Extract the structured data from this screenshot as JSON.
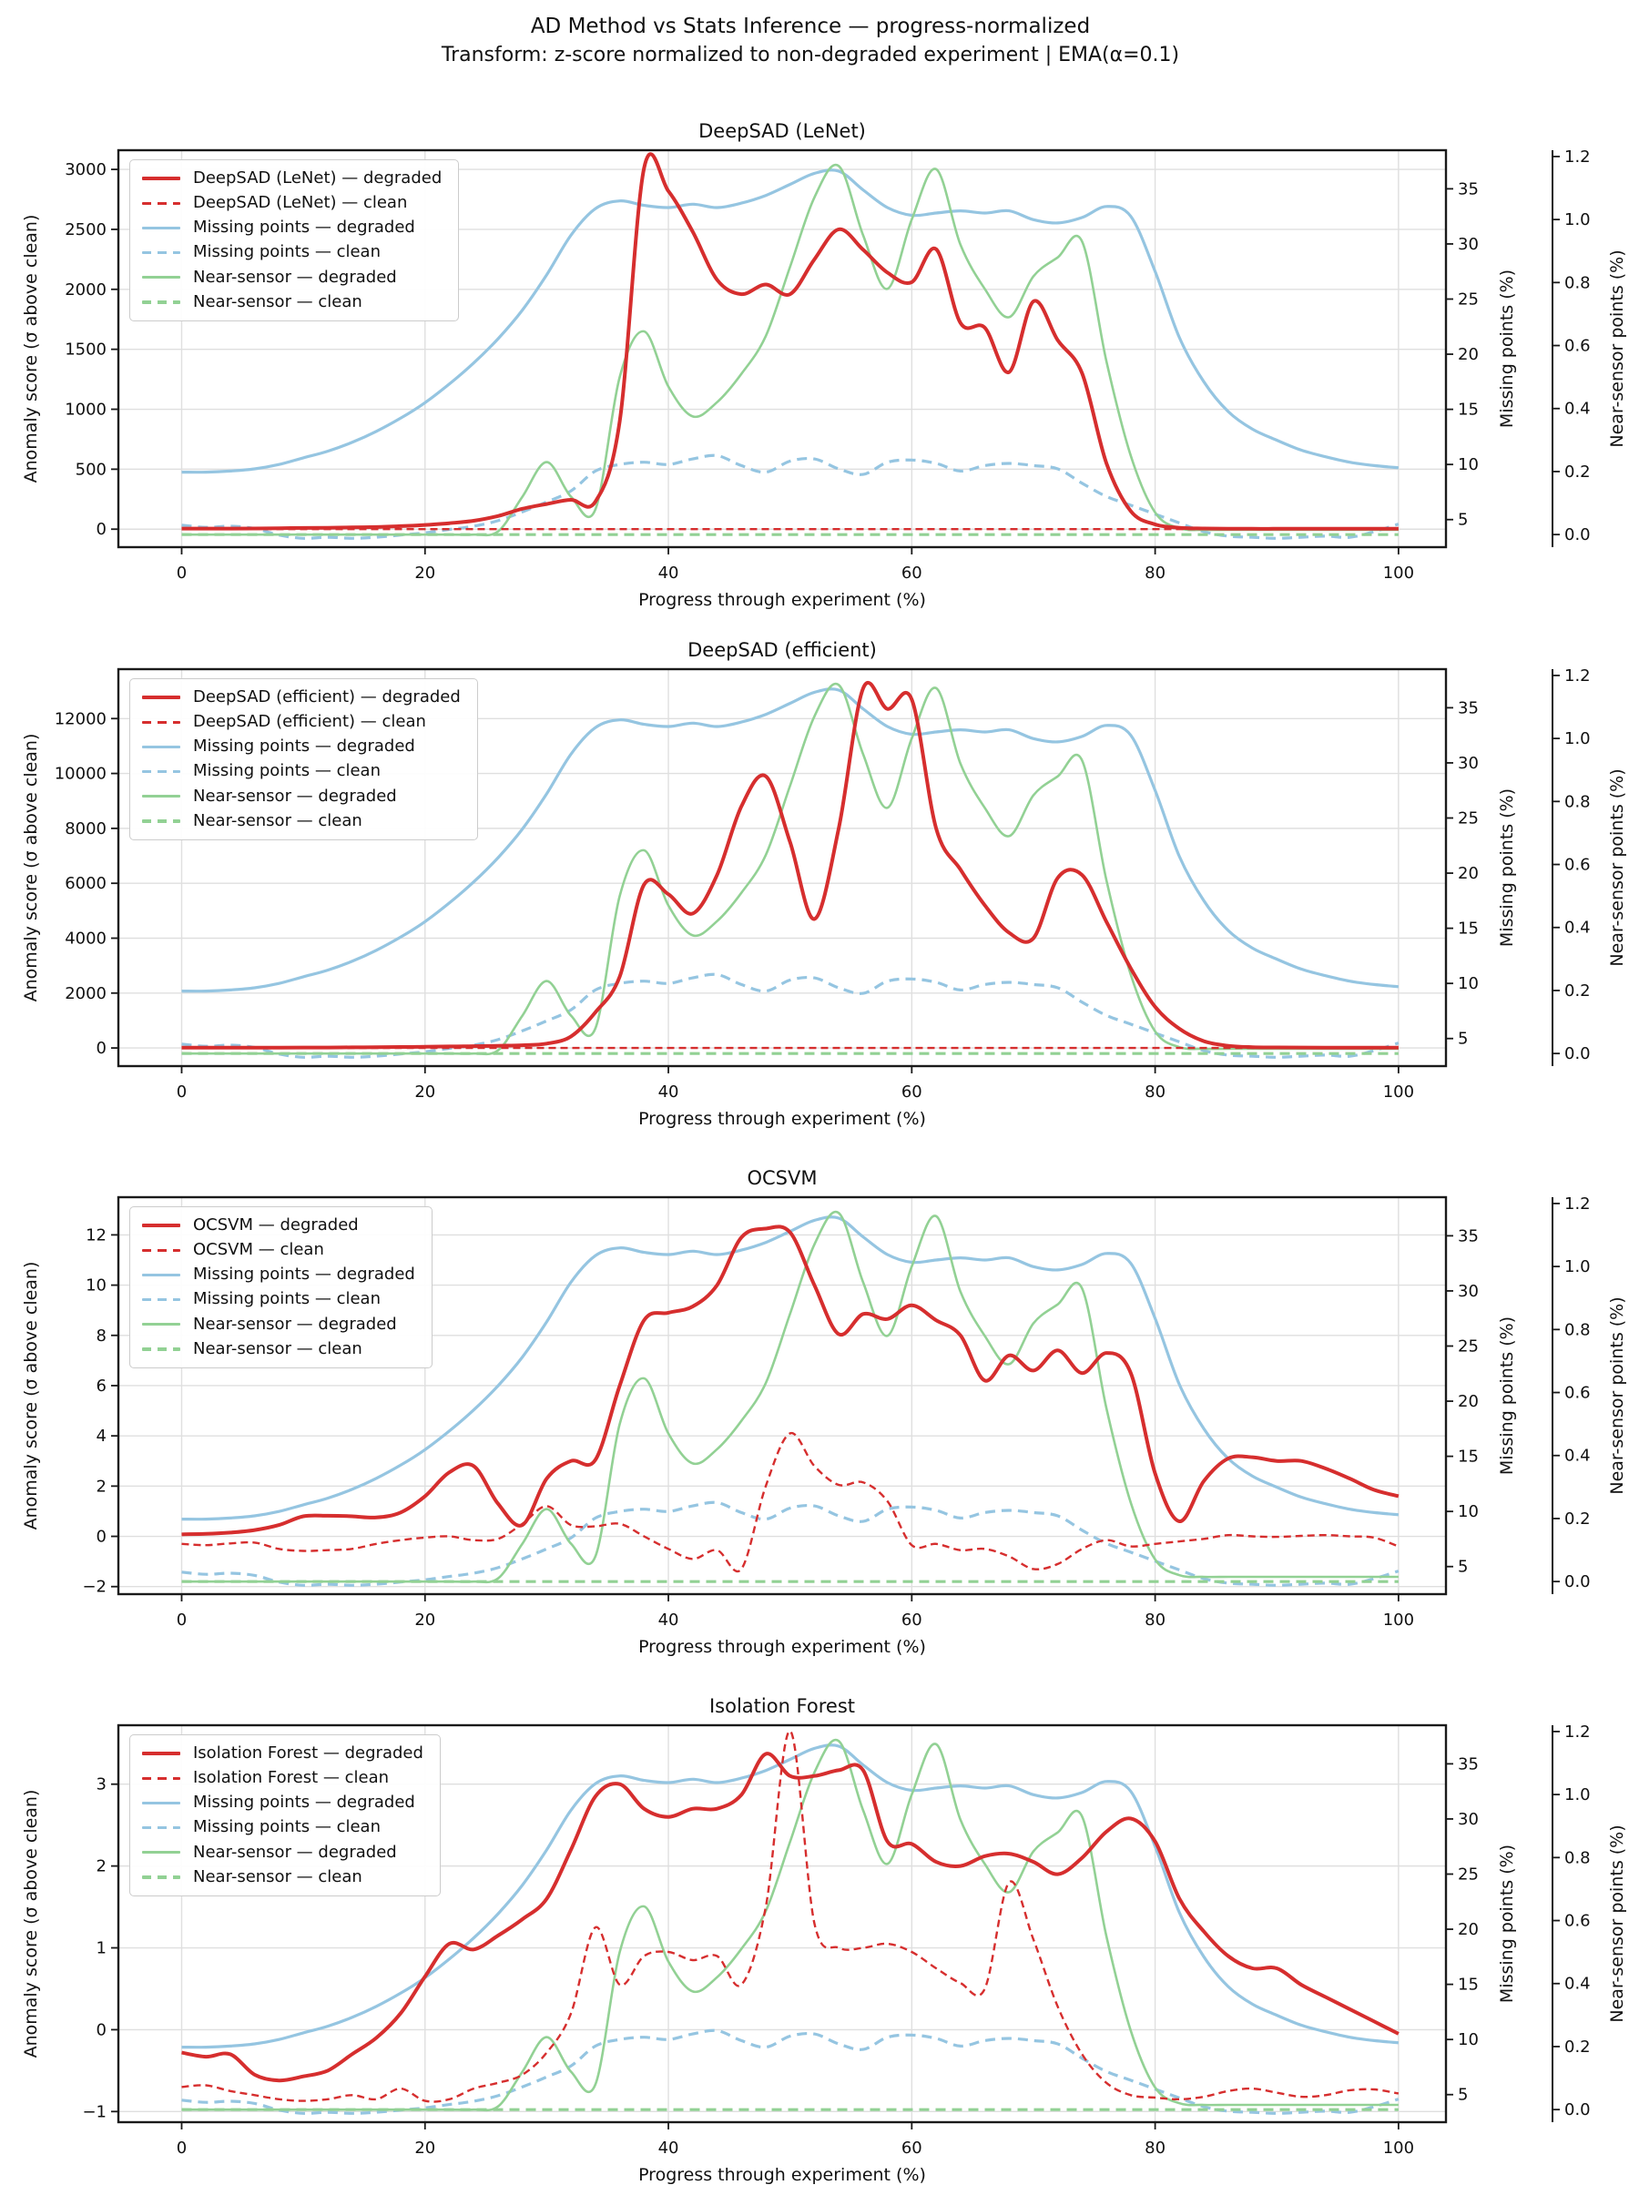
{
  "figure": {
    "suptitle": "AD Method vs Stats Inference — progress-normalized",
    "subtitle": "Transform: z-score normalized to non-degraded experiment | EMA(α=0.1)"
  },
  "colors": {
    "method": "#d62e2e",
    "missing": "#95c5e1",
    "near": "#92d194",
    "grid": "#dfdfdf",
    "spine": "#1a1a1a",
    "text": "#111111"
  },
  "chart_data": {
    "type": "line",
    "grid": true,
    "legend_position": "upper left",
    "x_axis": {
      "label": "Progress through experiment (%)",
      "ticks": [
        0,
        20,
        40,
        60,
        80,
        100
      ],
      "lim": [
        -5.2,
        103.9
      ]
    },
    "right_axis_missing": {
      "label": "Missing points (%)",
      "ticks": [
        5,
        10,
        15,
        20,
        25,
        30,
        35
      ],
      "lim": [
        2.5,
        38.5
      ]
    },
    "right_axis_near": {
      "label": "Near-sensor points (%)",
      "ticks": [
        0.0,
        0.2,
        0.4,
        0.6,
        0.8,
        1.0,
        1.2
      ],
      "lim": [
        -0.04,
        1.22
      ]
    },
    "x": [
      0,
      2,
      4,
      6,
      8,
      10,
      12,
      14,
      16,
      18,
      20,
      22,
      24,
      26,
      28,
      30,
      32,
      34,
      36,
      38,
      40,
      42,
      44,
      46,
      48,
      50,
      52,
      54,
      56,
      58,
      60,
      62,
      64,
      66,
      68,
      70,
      72,
      74,
      76,
      78,
      80,
      82,
      84,
      86,
      88,
      90,
      92,
      94,
      96,
      98,
      100
    ],
    "shared_series": {
      "missing_degraded": [
        9.3,
        9.3,
        9.4,
        9.6,
        10.0,
        10.6,
        11.2,
        12.0,
        13.0,
        14.2,
        15.6,
        17.3,
        19.2,
        21.4,
        24.0,
        27.2,
        30.8,
        33.2,
        33.9,
        33.5,
        33.3,
        33.6,
        33.3,
        33.7,
        34.4,
        35.4,
        36.4,
        36.6,
        34.9,
        33.3,
        32.6,
        32.8,
        33.0,
        32.8,
        33.0,
        32.2,
        31.9,
        32.4,
        33.4,
        32.5,
        27.5,
        21.5,
        17.5,
        14.8,
        13.2,
        12.2,
        11.3,
        10.7,
        10.2,
        9.9,
        9.7
      ],
      "missing_clean": [
        4.5,
        4.3,
        4.4,
        4.2,
        3.6,
        3.3,
        3.4,
        3.3,
        3.4,
        3.6,
        3.8,
        4.1,
        4.4,
        4.9,
        5.7,
        6.6,
        7.6,
        9.4,
        10.0,
        10.2,
        10.0,
        10.5,
        10.8,
        9.9,
        9.3,
        10.3,
        10.5,
        9.6,
        9.1,
        10.2,
        10.4,
        10.1,
        9.4,
        9.9,
        10.1,
        9.9,
        9.6,
        8.3,
        7.1,
        6.3,
        5.5,
        4.7,
        3.9,
        3.5,
        3.4,
        3.3,
        3.4,
        3.5,
        3.4,
        3.9,
        4.6
      ],
      "near_degraded": [
        0,
        0,
        0,
        0,
        0,
        0,
        0,
        0,
        0,
        0,
        0,
        0,
        0,
        0.01,
        0.12,
        0.23,
        0.12,
        0.08,
        0.5,
        0.645,
        0.47,
        0.375,
        0.42,
        0.51,
        0.63,
        0.85,
        1.07,
        1.17,
        0.95,
        0.78,
        1.0,
        1.16,
        0.92,
        0.78,
        0.69,
        0.82,
        0.88,
        0.93,
        0.55,
        0.25,
        0.07,
        0.02,
        0.015,
        0.015,
        0.015,
        0.015,
        0.015,
        0.015,
        0.015,
        0.015,
        0.015
      ],
      "near_clean": {
        "flat": 0.0
      }
    },
    "panels": [
      {
        "title": "DeepSAD (LeNet)",
        "left_axis": {
          "label": "Anomaly score (σ above clean)",
          "ticks": [
            0,
            500,
            1000,
            1500,
            2000,
            2500,
            3000
          ],
          "lim": [
            -150,
            3160
          ]
        },
        "series": {
          "method_degraded": [
            5,
            5,
            5,
            6,
            8,
            10,
            12,
            15,
            18,
            25,
            35,
            50,
            70,
            110,
            170,
            210,
            245,
            230,
            900,
            3010,
            2820,
            2480,
            2080,
            1960,
            2040,
            1960,
            2250,
            2500,
            2330,
            2140,
            2060,
            2335,
            1720,
            1680,
            1310,
            1900,
            1575,
            1300,
            550,
            150,
            40,
            12,
            6,
            4,
            3,
            3,
            3,
            3,
            3,
            3,
            3
          ],
          "method_clean": {
            "flat": 0.0
          }
        },
        "legend": [
          "DeepSAD (LeNet) — degraded",
          "DeepSAD (LeNet) — clean",
          "Missing points — degraded",
          "Missing points — clean",
          "Near-sensor — degraded",
          "Near-sensor — clean"
        ]
      },
      {
        "title": "DeepSAD (efficient)",
        "left_axis": {
          "label": "Anomaly score (σ above clean)",
          "ticks": [
            0,
            2000,
            4000,
            6000,
            8000,
            10000,
            12000
          ],
          "lim": [
            -660,
            13800
          ]
        },
        "series": {
          "method_degraded": [
            10,
            10,
            10,
            10,
            12,
            15,
            18,
            22,
            28,
            35,
            45,
            55,
            65,
            80,
            100,
            160,
            420,
            1300,
            2600,
            5950,
            5600,
            4900,
            6300,
            8800,
            9900,
            7500,
            4700,
            8000,
            13100,
            12350,
            12700,
            8000,
            6500,
            5200,
            4200,
            4000,
            6200,
            6300,
            4600,
            2900,
            1500,
            700,
            250,
            80,
            30,
            20,
            15,
            12,
            10,
            10,
            10
          ],
          "method_clean": {
            "flat": 0.0
          }
        },
        "legend": [
          "DeepSAD (efficient) — degraded",
          "DeepSAD (efficient) — clean",
          "Missing points — degraded",
          "Missing points — clean",
          "Near-sensor — degraded",
          "Near-sensor — clean"
        ]
      },
      {
        "title": "OCSVM",
        "left_axis": {
          "label": "Anomaly score (σ above clean)",
          "ticks": [
            -2,
            0,
            2,
            4,
            6,
            8,
            10,
            12
          ],
          "lim": [
            -2.3,
            13.5
          ]
        },
        "series": {
          "method_degraded": [
            0.08,
            0.1,
            0.15,
            0.25,
            0.45,
            0.8,
            0.82,
            0.8,
            0.75,
            0.95,
            1.6,
            2.55,
            2.8,
            1.3,
            0.45,
            2.3,
            3.0,
            3.05,
            6.0,
            8.6,
            8.9,
            9.15,
            10.0,
            11.9,
            12.25,
            12.1,
            10.0,
            8.05,
            8.85,
            8.65,
            9.2,
            8.6,
            8.0,
            6.2,
            7.2,
            6.6,
            7.4,
            6.5,
            7.3,
            6.5,
            2.5,
            0.6,
            2.2,
            3.1,
            3.15,
            3.0,
            3.0,
            2.7,
            2.3,
            1.85,
            1.6
          ],
          "method_clean": [
            -0.3,
            -0.35,
            -0.28,
            -0.25,
            -0.5,
            -0.58,
            -0.55,
            -0.5,
            -0.3,
            -0.15,
            -0.05,
            0.0,
            -0.15,
            -0.1,
            0.5,
            1.2,
            0.45,
            0.4,
            0.5,
            0.0,
            -0.5,
            -0.9,
            -0.55,
            -1.3,
            2.0,
            4.1,
            2.8,
            2.05,
            2.15,
            1.4,
            -0.35,
            -0.3,
            -0.55,
            -0.5,
            -0.8,
            -1.3,
            -1.1,
            -0.5,
            -0.15,
            -0.4,
            -0.3,
            -0.2,
            -0.1,
            0.05,
            0.0,
            -0.02,
            0.02,
            0.05,
            0.0,
            -0.05,
            -0.4
          ]
        },
        "legend": [
          "OCSVM — degraded",
          "OCSVM — clean",
          "Missing points — degraded",
          "Missing points — clean",
          "Near-sensor — degraded",
          "Near-sensor — clean"
        ]
      },
      {
        "title": "Isolation Forest",
        "left_axis": {
          "label": "Anomaly score (σ above clean)",
          "ticks": [
            -1,
            0,
            1,
            2,
            3
          ],
          "lim": [
            -1.13,
            3.72
          ]
        },
        "series": {
          "method_degraded": [
            -0.28,
            -0.33,
            -0.3,
            -0.55,
            -0.62,
            -0.57,
            -0.5,
            -0.3,
            -0.1,
            0.2,
            0.65,
            1.05,
            0.98,
            1.15,
            1.35,
            1.6,
            2.2,
            2.85,
            3.0,
            2.7,
            2.6,
            2.7,
            2.7,
            2.87,
            3.37,
            3.1,
            3.1,
            3.17,
            3.17,
            2.3,
            2.27,
            2.05,
            2.0,
            2.12,
            2.15,
            2.05,
            1.9,
            2.1,
            2.42,
            2.58,
            2.3,
            1.6,
            1.2,
            0.9,
            0.75,
            0.75,
            0.55,
            0.4,
            0.25,
            0.1,
            -0.05
          ],
          "method_clean": [
            -0.7,
            -0.68,
            -0.75,
            -0.8,
            -0.85,
            -0.87,
            -0.85,
            -0.8,
            -0.85,
            -0.72,
            -0.87,
            -0.85,
            -0.72,
            -0.65,
            -0.55,
            -0.28,
            0.2,
            1.25,
            0.55,
            0.9,
            0.95,
            0.85,
            0.9,
            0.55,
            1.5,
            3.65,
            1.3,
            1.0,
            1.0,
            1.05,
            0.95,
            0.75,
            0.57,
            0.5,
            1.8,
            1.1,
            0.28,
            -0.3,
            -0.65,
            -0.8,
            -0.83,
            -0.85,
            -0.82,
            -0.75,
            -0.72,
            -0.77,
            -0.82,
            -0.8,
            -0.74,
            -0.73,
            -0.78
          ]
        },
        "legend": [
          "Isolation Forest — degraded",
          "Isolation Forest — clean",
          "Missing points — degraded",
          "Missing points — clean",
          "Near-sensor — degraded",
          "Near-sensor — clean"
        ]
      }
    ]
  }
}
